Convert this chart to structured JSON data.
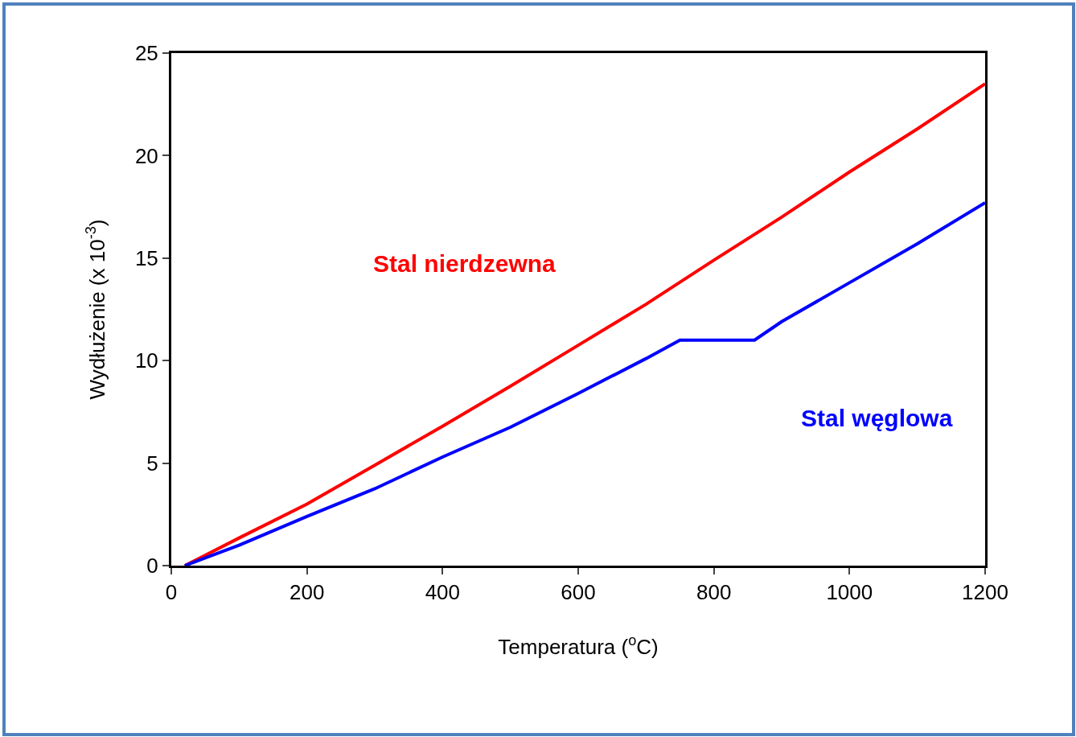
{
  "chart_data": {
    "type": "line",
    "xlabel": "Temperatura ($^{o}$C)",
    "ylabel": "Wydłużenie (x 10$^{-3}$)",
    "xlim": [
      0,
      1200
    ],
    "xticks": [
      0,
      200,
      400,
      600,
      800,
      1000,
      1200
    ],
    "ylim": [
      0,
      25
    ],
    "yticks": [
      0,
      5,
      10,
      15,
      20,
      25
    ],
    "grid": false,
    "legend": false,
    "marker": "none",
    "line_style": "solid",
    "series": [
      {
        "name": "Stal nierdzewna",
        "color": "#ff0000",
        "x": [
          20,
          100,
          200,
          300,
          400,
          500,
          600,
          700,
          800,
          900,
          1000,
          1100,
          1200
        ],
        "values": [
          0,
          1.35,
          3.0,
          4.9,
          6.8,
          8.75,
          10.75,
          12.75,
          14.9,
          17.0,
          19.2,
          21.3,
          23.5
        ]
      },
      {
        "name": "Stal węglowa",
        "color": "#0000ff",
        "x": [
          20,
          100,
          200,
          300,
          400,
          500,
          600,
          700,
          750,
          860,
          900,
          1000,
          1100,
          1200
        ],
        "values": [
          0,
          1.0,
          2.4,
          3.75,
          5.3,
          6.75,
          8.4,
          10.1,
          11.0,
          11.0,
          11.9,
          13.8,
          15.7,
          17.7
        ]
      }
    ]
  }
}
